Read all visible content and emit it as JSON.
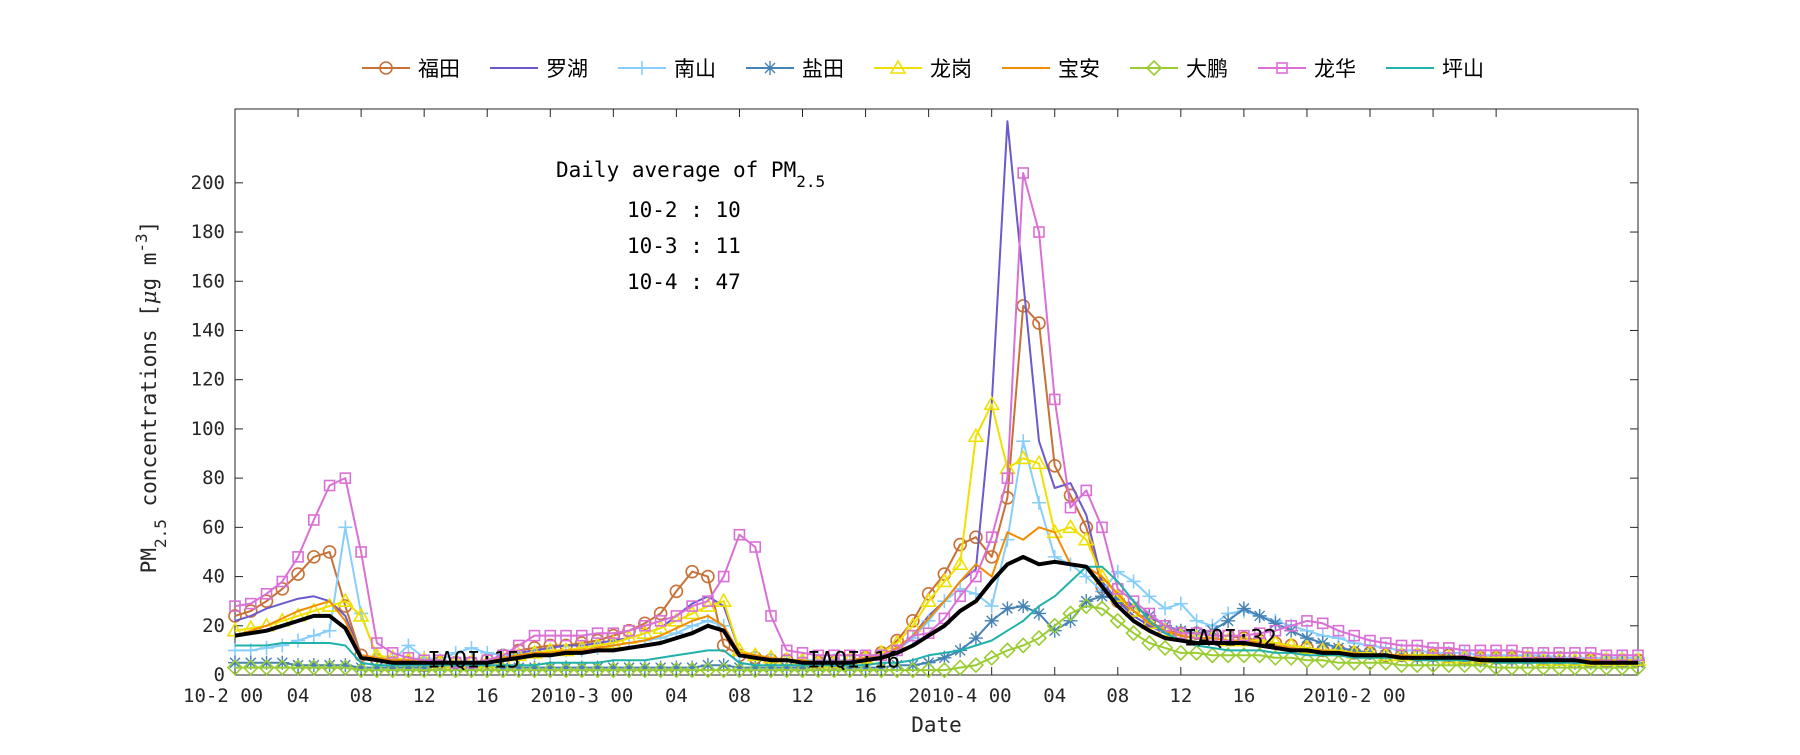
{
  "chart_data": {
    "type": "line",
    "title": "",
    "xlabel": "Date",
    "ylabel": "PM2.5 concentrations [μg m-3]",
    "ylabel_parts": {
      "pre": "PM",
      "sub": "2.5",
      "mid": " concentrations [",
      "mu": "μ",
      "post": "g m",
      "sup": "-3",
      "end": "]"
    },
    "ylim": [
      0,
      230
    ],
    "yticks": [
      0,
      20,
      40,
      60,
      80,
      100,
      120,
      140,
      160,
      180,
      200
    ],
    "ytick_labels": [
      "0",
      "20",
      "40",
      "60",
      "80",
      "100",
      "120",
      "140",
      "160",
      "180",
      "200"
    ],
    "xlim": [
      0,
      89
    ],
    "xtick_hours": [
      0,
      4,
      8,
      12,
      16,
      20,
      24,
      28,
      32,
      36,
      40,
      44,
      48,
      52,
      56,
      60,
      64,
      68,
      72,
      76,
      80
    ],
    "xtick_labels": [
      {
        "text": "10-2 00",
        "hour": 0,
        "align": "start"
      },
      {
        "text": "04",
        "hour": 4
      },
      {
        "text": "08",
        "hour": 8
      },
      {
        "text": "12",
        "hour": 12
      },
      {
        "text": "16",
        "hour": 16
      },
      {
        "text": "2010-3 00",
        "hour": 22
      },
      {
        "text": "04",
        "hour": 28
      },
      {
        "text": "08",
        "hour": 32
      },
      {
        "text": "12",
        "hour": 36
      },
      {
        "text": "16",
        "hour": 40
      },
      {
        "text": "2010-4 00",
        "hour": 46
      },
      {
        "text": "04",
        "hour": 52
      },
      {
        "text": "08",
        "hour": 56
      },
      {
        "text": "12",
        "hour": 60
      },
      {
        "text": "16",
        "hour": 64
      },
      {
        "text": "2010-2 00",
        "hour": 71
      }
    ],
    "grid": false,
    "legend_position": "top",
    "annotation": {
      "heading_pre": "Daily average of PM",
      "heading_sub": "2.5",
      "lines": [
        "10-2 : 10",
        "10-3 : 11",
        "10-4 : 47"
      ]
    },
    "iaqi_labels": [
      {
        "text": "IAQI:15",
        "hour": 12.2,
        "value": 3
      },
      {
        "text": "IAQI:16",
        "hour": 36.3,
        "value": 3
      },
      {
        "text": "IAQI:32",
        "hour": 60.2,
        "value": 12
      }
    ],
    "series": [
      {
        "name": "福田",
        "color": "#c87137",
        "marker": "circle",
        "width": 2,
        "values": [
          24,
          26,
          30,
          35,
          41,
          48,
          50,
          28,
          8,
          6,
          5,
          5,
          4,
          5,
          5,
          5,
          6,
          8,
          10,
          11,
          12,
          12,
          13,
          14,
          16,
          18,
          21,
          25,
          34,
          42,
          40,
          12,
          8,
          7,
          6,
          6,
          5,
          5,
          5,
          6,
          7,
          9,
          14,
          22,
          33,
          41,
          53,
          56,
          48,
          72,
          150,
          143,
          85,
          73,
          60,
          36,
          30,
          26,
          22,
          18,
          17,
          17,
          16,
          16,
          15,
          14,
          13,
          12,
          11,
          10,
          10,
          9,
          9,
          8,
          8,
          8,
          8,
          8,
          7,
          7,
          7,
          7,
          7,
          7,
          7,
          7,
          6,
          6,
          6,
          6
        ]
      },
      {
        "name": "罗湖",
        "color": "#6a5acd",
        "marker": "none",
        "width": 2,
        "values": [
          22,
          24,
          27,
          29,
          31,
          32,
          30,
          24,
          8,
          7,
          6,
          6,
          5,
          5,
          5,
          5,
          6,
          7,
          9,
          10,
          11,
          12,
          12,
          13,
          14,
          15,
          17,
          19,
          24,
          29,
          32,
          28,
          10,
          8,
          7,
          6,
          6,
          5,
          5,
          6,
          7,
          8,
          11,
          16,
          24,
          30,
          38,
          43,
          110,
          225,
          160,
          95,
          76,
          78,
          65,
          38,
          30,
          24,
          20,
          17,
          16,
          15,
          15,
          14,
          14,
          13,
          12,
          11,
          10,
          10,
          9,
          9,
          8,
          8,
          8,
          8,
          7,
          7,
          7,
          7,
          7,
          7,
          6,
          6,
          6,
          6,
          6,
          6,
          6,
          6
        ]
      },
      {
        "name": "南山",
        "color": "#87cefa",
        "marker": "plus",
        "width": 2,
        "values": [
          10,
          10,
          11,
          12,
          14,
          16,
          18,
          60,
          25,
          7,
          6,
          12,
          7,
          6,
          9,
          11,
          9,
          8,
          8,
          9,
          9,
          10,
          10,
          11,
          12,
          13,
          14,
          15,
          17,
          20,
          22,
          20,
          8,
          7,
          6,
          6,
          6,
          6,
          6,
          6,
          7,
          8,
          10,
          15,
          22,
          30,
          35,
          33,
          28,
          55,
          95,
          70,
          48,
          45,
          40,
          34,
          42,
          38,
          32,
          27,
          29,
          22,
          20,
          25,
          26,
          24,
          22,
          20,
          18,
          16,
          15,
          13,
          12,
          11,
          10,
          10,
          9,
          9,
          9,
          8,
          8,
          8,
          8,
          8,
          7,
          7,
          7,
          7,
          7,
          7
        ]
      },
      {
        "name": "盐田",
        "color": "#4682b4",
        "marker": "asterisk",
        "width": 2,
        "values": [
          5,
          5,
          5,
          5,
          4,
          4,
          4,
          4,
          3,
          3,
          3,
          3,
          3,
          3,
          3,
          3,
          3,
          3,
          3,
          3,
          3,
          3,
          3,
          3,
          3,
          3,
          3,
          3,
          3,
          3,
          4,
          4,
          3,
          3,
          3,
          3,
          3,
          3,
          3,
          3,
          3,
          3,
          4,
          4,
          5,
          7,
          10,
          15,
          22,
          27,
          28,
          25,
          18,
          22,
          30,
          32,
          31,
          28,
          24,
          20,
          18,
          17,
          18,
          22,
          27,
          24,
          21,
          18,
          15,
          13,
          11,
          10,
          9,
          8,
          8,
          7,
          7,
          7,
          6,
          6,
          6,
          6,
          6,
          6,
          6,
          5,
          5,
          5,
          5,
          5
        ]
      },
      {
        "name": "龙岗",
        "color": "#f0e000",
        "marker": "triangle",
        "width": 2,
        "values": [
          18,
          19,
          20,
          22,
          24,
          26,
          28,
          30,
          24,
          8,
          7,
          6,
          6,
          5,
          5,
          5,
          5,
          6,
          8,
          9,
          10,
          10,
          11,
          12,
          13,
          15,
          17,
          19,
          22,
          25,
          28,
          30,
          10,
          8,
          7,
          6,
          6,
          5,
          5,
          6,
          7,
          9,
          13,
          20,
          30,
          38,
          45,
          97,
          110,
          84,
          88,
          86,
          58,
          60,
          55,
          40,
          32,
          26,
          21,
          18,
          16,
          15,
          15,
          14,
          14,
          14,
          13,
          12,
          11,
          10,
          10,
          9,
          9,
          8,
          8,
          8,
          8,
          7,
          7,
          7,
          7,
          7,
          7,
          6,
          6,
          6,
          6,
          6,
          6,
          6
        ]
      },
      {
        "name": "宝安",
        "color": "#f28c00",
        "marker": "none",
        "width": 2,
        "values": [
          16,
          18,
          20,
          23,
          26,
          28,
          30,
          22,
          8,
          7,
          6,
          6,
          5,
          5,
          5,
          5,
          6,
          7,
          8,
          9,
          9,
          10,
          10,
          11,
          12,
          13,
          14,
          16,
          19,
          22,
          24,
          20,
          9,
          8,
          7,
          6,
          6,
          5,
          5,
          6,
          7,
          8,
          11,
          16,
          23,
          30,
          38,
          45,
          40,
          58,
          55,
          60,
          58,
          45,
          44,
          40,
          33,
          26,
          21,
          18,
          16,
          15,
          15,
          14,
          14,
          13,
          12,
          11,
          10,
          10,
          9,
          9,
          8,
          8,
          8,
          7,
          7,
          7,
          7,
          7,
          6,
          6,
          6,
          6,
          6,
          6,
          6,
          6,
          5,
          5
        ]
      },
      {
        "name": "大鹏",
        "color": "#9acd32",
        "marker": "diamond",
        "width": 2,
        "values": [
          3,
          3,
          3,
          3,
          3,
          3,
          3,
          3,
          2,
          2,
          2,
          2,
          2,
          2,
          2,
          2,
          2,
          2,
          2,
          2,
          2,
          2,
          2,
          2,
          2,
          2,
          2,
          2,
          2,
          2,
          2,
          2,
          2,
          2,
          2,
          2,
          2,
          2,
          2,
          2,
          2,
          2,
          2,
          2,
          2,
          2,
          3,
          4,
          7,
          10,
          12,
          15,
          20,
          25,
          28,
          27,
          22,
          17,
          13,
          11,
          9,
          9,
          8,
          8,
          8,
          8,
          7,
          7,
          6,
          6,
          5,
          5,
          5,
          5,
          4,
          4,
          4,
          4,
          4,
          4,
          3,
          3,
          3,
          3,
          3,
          3,
          3,
          3,
          3,
          3
        ]
      },
      {
        "name": "龙华",
        "color": "#da70d6",
        "marker": "square",
        "width": 2,
        "values": [
          28,
          29,
          33,
          38,
          48,
          63,
          77,
          80,
          50,
          13,
          9,
          7,
          6,
          6,
          5,
          5,
          6,
          8,
          12,
          16,
          16,
          16,
          16,
          17,
          17,
          18,
          20,
          22,
          24,
          28,
          30,
          40,
          57,
          52,
          24,
          10,
          9,
          8,
          8,
          8,
          8,
          8,
          10,
          16,
          17,
          23,
          32,
          40,
          56,
          80,
          204,
          180,
          112,
          68,
          75,
          60,
          35,
          30,
          25,
          20,
          17,
          17,
          16,
          16,
          16,
          17,
          18,
          20,
          22,
          21,
          18,
          16,
          14,
          13,
          12,
          12,
          11,
          11,
          10,
          10,
          10,
          10,
          9,
          9,
          9,
          9,
          9,
          8,
          8,
          8
        ]
      },
      {
        "name": "坪山",
        "color": "#20b2aa",
        "marker": "none",
        "width": 2,
        "values": [
          12,
          12,
          12,
          13,
          13,
          13,
          13,
          12,
          5,
          4,
          4,
          4,
          4,
          4,
          4,
          4,
          4,
          4,
          4,
          4,
          5,
          5,
          5,
          5,
          6,
          6,
          6,
          7,
          8,
          9,
          10,
          10,
          5,
          4,
          4,
          4,
          4,
          4,
          4,
          4,
          4,
          5,
          5,
          6,
          8,
          9,
          10,
          12,
          14,
          18,
          22,
          28,
          32,
          38,
          44,
          44,
          38,
          30,
          22,
          17,
          14,
          12,
          11,
          10,
          10,
          10,
          9,
          9,
          8,
          8,
          8,
          7,
          7,
          7,
          7,
          6,
          6,
          6,
          6,
          6,
          5,
          5,
          5,
          5,
          5,
          5,
          5,
          5,
          5,
          5
        ]
      },
      {
        "name": "",
        "color": "#000000",
        "marker": "none",
        "width": 4,
        "values": [
          16,
          17,
          18,
          20,
          22,
          24,
          24,
          19,
          7,
          6,
          5,
          5,
          5,
          5,
          5,
          5,
          5,
          6,
          7,
          8,
          8,
          9,
          9,
          10,
          10,
          11,
          12,
          13,
          15,
          17,
          20,
          18,
          8,
          7,
          6,
          6,
          5,
          5,
          5,
          5,
          6,
          7,
          9,
          12,
          16,
          20,
          26,
          30,
          38,
          45,
          48,
          45,
          46,
          45,
          44,
          36,
          28,
          22,
          18,
          15,
          14,
          13,
          13,
          13,
          13,
          12,
          11,
          10,
          10,
          9,
          9,
          8,
          8,
          8,
          7,
          7,
          7,
          7,
          7,
          6,
          6,
          6,
          6,
          6,
          6,
          6,
          5,
          5,
          5,
          5
        ]
      }
    ]
  }
}
